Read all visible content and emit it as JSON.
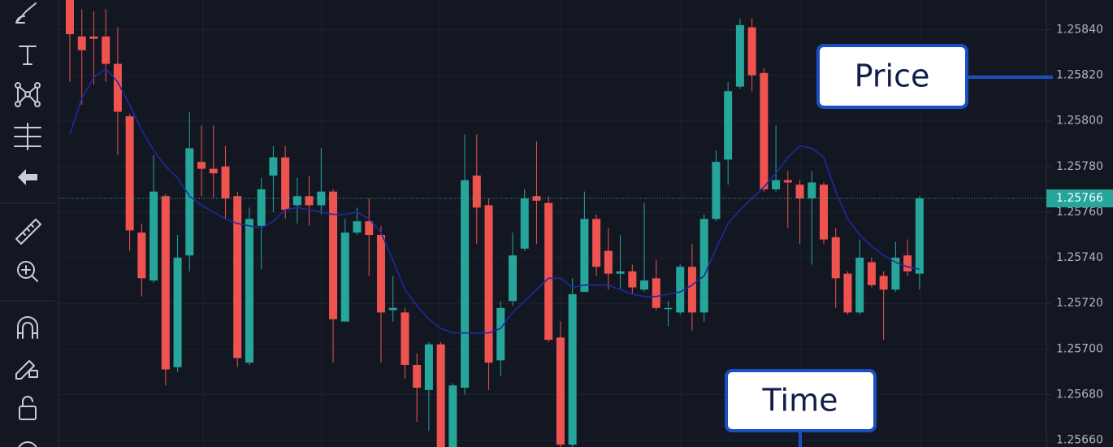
{
  "chart_data": {
    "type": "candlestick",
    "ylim": [
      1.25657,
      1.25853
    ],
    "yticks": [
      {
        "value": 1.2584,
        "label": "1.25840"
      },
      {
        "value": 1.2582,
        "label": "1.25820"
      },
      {
        "value": 1.258,
        "label": "1.25800"
      },
      {
        "value": 1.2578,
        "label": "1.25780"
      },
      {
        "value": 1.2576,
        "label": "1.25760"
      },
      {
        "value": 1.2574,
        "label": "1.25740"
      },
      {
        "value": 1.2572,
        "label": "1.25720"
      },
      {
        "value": 1.257,
        "label": "1.25700"
      },
      {
        "value": 1.2568,
        "label": "1.25680"
      },
      {
        "value": 1.2566,
        "label": "1.25660"
      }
    ],
    "grid": true,
    "up_color": "#26a69a",
    "down_color": "#ef5350",
    "open": [
      1.25853,
      1.25837,
      1.25837,
      1.25837,
      1.25825,
      1.25802,
      1.25751,
      1.2573,
      1.25767,
      1.25692,
      1.25741,
      1.25782,
      1.25779,
      1.2578,
      1.25767,
      1.25694,
      1.25754,
      1.25776,
      1.25784,
      1.25763,
      1.25767,
      1.25763,
      1.25769,
      1.25712,
      1.25751,
      1.25756,
      1.2575,
      1.25717,
      1.25716,
      1.25693,
      1.25682,
      1.25702,
      1.25657,
      1.25683,
      1.25776,
      1.25763,
      1.25695,
      1.25721,
      1.25744,
      1.25767,
      1.25764,
      1.25705,
      1.25658,
      1.25725,
      1.25757,
      1.25743,
      1.25733,
      1.25734,
      1.25726,
      1.25731,
      1.25718,
      1.25716,
      1.25736,
      1.25716,
      1.25757,
      1.25783,
      1.25815,
      1.25841,
      1.25821,
      1.2577,
      1.25774,
      1.25772,
      1.25766,
      1.25772,
      1.25749,
      1.25733,
      1.25716,
      1.25738,
      1.25732,
      1.25726,
      1.25741,
      1.25733
    ],
    "high": [
      1.25853,
      1.25849,
      1.25848,
      1.25849,
      1.25841,
      1.25803,
      1.25755,
      1.25785,
      1.25768,
      1.2575,
      1.25804,
      1.25798,
      1.25798,
      1.25789,
      1.25769,
      1.25762,
      1.25775,
      1.25789,
      1.25789,
      1.25775,
      1.25776,
      1.25788,
      1.2577,
      1.25757,
      1.25762,
      1.25766,
      1.25754,
      1.25732,
      1.25718,
      1.25698,
      1.25703,
      1.25703,
      1.25685,
      1.25794,
      1.25794,
      1.25766,
      1.25721,
      1.25751,
      1.2577,
      1.25791,
      1.25767,
      1.25712,
      1.25731,
      1.25769,
      1.25759,
      1.25753,
      1.2575,
      1.25737,
      1.25764,
      1.25739,
      1.25721,
      1.25737,
      1.25746,
      1.25759,
      1.25787,
      1.25817,
      1.25845,
      1.25845,
      1.25823,
      1.25798,
      1.25778,
      1.25774,
      1.25778,
      1.25773,
      1.25753,
      1.25734,
      1.25748,
      1.2574,
      1.25734,
      1.25747,
      1.25748,
      1.25767
    ],
    "low": [
      1.25817,
      1.25807,
      1.25816,
      1.25817,
      1.25785,
      1.25743,
      1.25723,
      1.25729,
      1.25684,
      1.2569,
      1.25734,
      1.25767,
      1.25766,
      1.25757,
      1.25692,
      1.25693,
      1.25735,
      1.2576,
      1.25757,
      1.25755,
      1.25754,
      1.25759,
      1.25694,
      1.25712,
      1.2575,
      1.25732,
      1.25694,
      1.25712,
      1.25687,
      1.25668,
      1.25664,
      1.25657,
      1.25657,
      1.2568,
      1.25746,
      1.25682,
      1.25688,
      1.25719,
      1.25743,
      1.25746,
      1.25703,
      1.25657,
      1.25657,
      1.25725,
      1.25732,
      1.25726,
      1.25726,
      1.25724,
      1.25725,
      1.25717,
      1.2571,
      1.25715,
      1.25708,
      1.25712,
      1.25756,
      1.25772,
      1.25814,
      1.25813,
      1.25769,
      1.25769,
      1.25753,
      1.25746,
      1.25737,
      1.25746,
      1.25718,
      1.25715,
      1.25715,
      1.25727,
      1.25704,
      1.25725,
      1.25732,
      1.25726
    ],
    "close": [
      1.25838,
      1.25831,
      1.25836,
      1.25825,
      1.25804,
      1.25752,
      1.25731,
      1.25769,
      1.25691,
      1.2574,
      1.25788,
      1.25779,
      1.25777,
      1.25766,
      1.25696,
      1.25757,
      1.2577,
      1.25784,
      1.25761,
      1.25767,
      1.25763,
      1.25769,
      1.25713,
      1.25751,
      1.25756,
      1.2575,
      1.25716,
      1.25718,
      1.25693,
      1.25683,
      1.25702,
      1.25657,
      1.25684,
      1.25774,
      1.25762,
      1.25694,
      1.25718,
      1.25741,
      1.25766,
      1.25765,
      1.25704,
      1.25658,
      1.25724,
      1.25757,
      1.25736,
      1.25733,
      1.25734,
      1.25727,
      1.2573,
      1.25718,
      1.25718,
      1.25736,
      1.25716,
      1.25757,
      1.25782,
      1.25813,
      1.25842,
      1.2582,
      1.2577,
      1.25774,
      1.25773,
      1.25766,
      1.25773,
      1.25748,
      1.25731,
      1.25716,
      1.2574,
      1.25728,
      1.25726,
      1.2574,
      1.25734,
      1.25766
    ],
    "moving_average": {
      "color": "#1f2a9e",
      "values": [
        1.25794,
        1.2581,
        1.25819,
        1.25823,
        1.25817,
        1.25807,
        1.25796,
        1.25787,
        1.2578,
        1.25775,
        1.25767,
        1.25763,
        1.2576,
        1.25757,
        1.25755,
        1.25754,
        1.25753,
        1.25756,
        1.25761,
        1.25762,
        1.25761,
        1.2576,
        1.25759,
        1.25759,
        1.2576,
        1.25757,
        1.25751,
        1.25739,
        1.25726,
        1.25719,
        1.25713,
        1.25709,
        1.25707,
        1.25707,
        1.25707,
        1.25707,
        1.25709,
        1.25716,
        1.25721,
        1.25726,
        1.25731,
        1.25731,
        1.25727,
        1.25728,
        1.25728,
        1.25728,
        1.25726,
        1.25724,
        1.25723,
        1.25723,
        1.25724,
        1.25725,
        1.25728,
        1.25732,
        1.25744,
        1.25755,
        1.25761,
        1.25766,
        1.25771,
        1.25777,
        1.25784,
        1.25789,
        1.25788,
        1.25784,
        1.25769,
        1.25757,
        1.2575,
        1.25745,
        1.25741,
        1.25738,
        1.25736,
        1.25735
      ]
    },
    "last_price": 1.25766,
    "annotations": [
      {
        "text": "Price"
      },
      {
        "text": "Time"
      }
    ]
  }
}
